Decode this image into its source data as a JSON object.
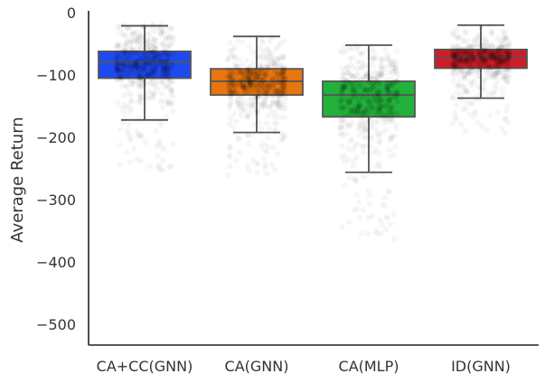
{
  "chart_data": {
    "type": "box",
    "title": "",
    "xlabel": "",
    "ylabel": "Average Return",
    "ylim": [
      -533,
      3
    ],
    "yticks": [
      0,
      -100,
      -200,
      -300,
      -400,
      -500
    ],
    "grid": false,
    "legend": "none",
    "categories": [
      "CA+CC(GNN)",
      "CA(GNN)",
      "CA(MLP)",
      "ID(GNN)"
    ],
    "boxes": [
      {
        "category": "CA+CC(GNN)",
        "color": "#1f49f0",
        "whisker_low": -172,
        "q1": -105,
        "median": -79,
        "q3": -62,
        "whisker_high": -21
      },
      {
        "category": "CA(GNN)",
        "color": "#e8760f",
        "whisker_low": -192,
        "q1": -132,
        "median": -110,
        "q3": -90,
        "whisker_high": -38
      },
      {
        "category": "CA(MLP)",
        "color": "#22b23c",
        "whisker_low": -256,
        "q1": -167,
        "median": -132,
        "q3": -110,
        "whisker_high": -52
      },
      {
        "category": "ID(GNN)",
        "color": "#cf1d28",
        "whisker_low": -137,
        "q1": -89,
        "median": -72,
        "q3": -59,
        "whisker_high": -20
      }
    ]
  }
}
